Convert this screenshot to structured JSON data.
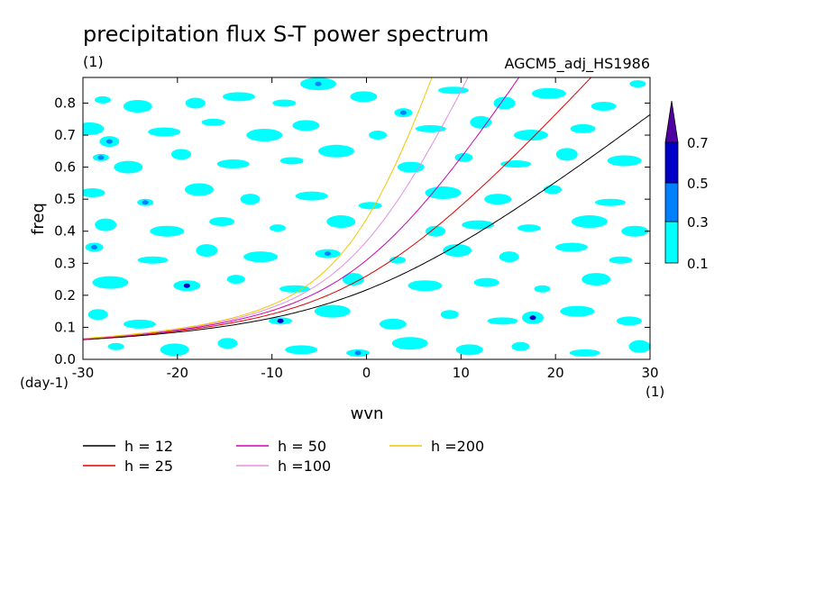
{
  "chart_data": {
    "type": "heatmap",
    "title": "precipitation flux S-T power spectrum",
    "unit_label": "(1)",
    "source_label": "AGCM5_adj_HS1986",
    "xlabel": "wvn",
    "ylabel": "freq",
    "x_unit": "(1)",
    "y_unit": "(day-1)",
    "xlim": [
      -30,
      30
    ],
    "ylim": [
      0,
      0.88
    ],
    "xticks": [
      "-30",
      "-20",
      "-10",
      "0",
      "10",
      "20",
      "30"
    ],
    "yticks": [
      "0.0",
      "0.1",
      "0.2",
      "0.3",
      "0.4",
      "0.5",
      "0.6",
      "0.7",
      "0.8"
    ],
    "colorbar": {
      "levels": [
        "0.1",
        "0.3",
        "0.5",
        "0.7"
      ],
      "colors": [
        "#00ffff",
        "#0080ff",
        "#0000c8",
        "#5000a0"
      ]
    },
    "noise_blobs": [
      {
        "x": -27.9,
        "y": 0.81,
        "v": 0.1
      },
      {
        "x": -24.2,
        "y": 0.79,
        "v": 0.1
      },
      {
        "x": -18.1,
        "y": 0.8,
        "v": 0.1
      },
      {
        "x": -13.5,
        "y": 0.82,
        "v": 0.1
      },
      {
        "x": -8.7,
        "y": 0.8,
        "v": 0.1
      },
      {
        "x": -5.1,
        "y": 0.86,
        "v": 0.3
      },
      {
        "x": -0.3,
        "y": 0.82,
        "v": 0.1
      },
      {
        "x": 3.9,
        "y": 0.77,
        "v": 0.3
      },
      {
        "x": 9.2,
        "y": 0.84,
        "v": 0.1
      },
      {
        "x": 14.6,
        "y": 0.8,
        "v": 0.1
      },
      {
        "x": 19.3,
        "y": 0.83,
        "v": 0.1
      },
      {
        "x": 25.1,
        "y": 0.79,
        "v": 0.1
      },
      {
        "x": 28.7,
        "y": 0.86,
        "v": 0.1
      },
      {
        "x": -29.3,
        "y": 0.72,
        "v": 0.1
      },
      {
        "x": -27.2,
        "y": 0.68,
        "v": 0.3
      },
      {
        "x": -21.4,
        "y": 0.71,
        "v": 0.1
      },
      {
        "x": -16.2,
        "y": 0.74,
        "v": 0.1
      },
      {
        "x": -10.8,
        "y": 0.7,
        "v": 0.1
      },
      {
        "x": -6.4,
        "y": 0.73,
        "v": 0.1
      },
      {
        "x": 1.2,
        "y": 0.7,
        "v": 0.1
      },
      {
        "x": 6.8,
        "y": 0.72,
        "v": 0.1
      },
      {
        "x": 12.1,
        "y": 0.74,
        "v": 0.1
      },
      {
        "x": 17.4,
        "y": 0.7,
        "v": 0.1
      },
      {
        "x": 22.9,
        "y": 0.72,
        "v": 0.1
      },
      {
        "x": -28.1,
        "y": 0.63,
        "v": 0.3
      },
      {
        "x": -25.2,
        "y": 0.6,
        "v": 0.1
      },
      {
        "x": -19.6,
        "y": 0.64,
        "v": 0.1
      },
      {
        "x": -14.1,
        "y": 0.61,
        "v": 0.1
      },
      {
        "x": -7.9,
        "y": 0.62,
        "v": 0.1
      },
      {
        "x": -3.2,
        "y": 0.65,
        "v": 0.1
      },
      {
        "x": 4.7,
        "y": 0.6,
        "v": 0.1
      },
      {
        "x": 10.3,
        "y": 0.63,
        "v": 0.1
      },
      {
        "x": 15.8,
        "y": 0.61,
        "v": 0.1
      },
      {
        "x": 21.2,
        "y": 0.64,
        "v": 0.1
      },
      {
        "x": 27.3,
        "y": 0.62,
        "v": 0.1
      },
      {
        "x": -29.0,
        "y": 0.52,
        "v": 0.1
      },
      {
        "x": -23.4,
        "y": 0.49,
        "v": 0.3
      },
      {
        "x": -17.7,
        "y": 0.53,
        "v": 0.1
      },
      {
        "x": -12.3,
        "y": 0.5,
        "v": 0.1
      },
      {
        "x": -5.8,
        "y": 0.51,
        "v": 0.1
      },
      {
        "x": 0.4,
        "y": 0.48,
        "v": 0.1
      },
      {
        "x": 8.1,
        "y": 0.52,
        "v": 0.1
      },
      {
        "x": 13.9,
        "y": 0.5,
        "v": 0.1
      },
      {
        "x": 19.7,
        "y": 0.53,
        "v": 0.1
      },
      {
        "x": 25.8,
        "y": 0.49,
        "v": 0.1
      },
      {
        "x": -27.6,
        "y": 0.42,
        "v": 0.1
      },
      {
        "x": -21.1,
        "y": 0.4,
        "v": 0.1
      },
      {
        "x": -15.3,
        "y": 0.43,
        "v": 0.1
      },
      {
        "x": -9.4,
        "y": 0.41,
        "v": 0.1
      },
      {
        "x": -2.7,
        "y": 0.43,
        "v": 0.1
      },
      {
        "x": 7.3,
        "y": 0.4,
        "v": 0.1
      },
      {
        "x": 11.8,
        "y": 0.42,
        "v": 0.1
      },
      {
        "x": 17.2,
        "y": 0.41,
        "v": 0.1
      },
      {
        "x": 23.6,
        "y": 0.43,
        "v": 0.1
      },
      {
        "x": 28.4,
        "y": 0.4,
        "v": 0.1
      },
      {
        "x": -28.8,
        "y": 0.35,
        "v": 0.3
      },
      {
        "x": -22.6,
        "y": 0.31,
        "v": 0.1
      },
      {
        "x": -16.9,
        "y": 0.34,
        "v": 0.1
      },
      {
        "x": -11.2,
        "y": 0.32,
        "v": 0.1
      },
      {
        "x": -4.1,
        "y": 0.33,
        "v": 0.3
      },
      {
        "x": 3.3,
        "y": 0.31,
        "v": 0.1
      },
      {
        "x": 9.6,
        "y": 0.34,
        "v": 0.1
      },
      {
        "x": 15.1,
        "y": 0.32,
        "v": 0.1
      },
      {
        "x": 21.7,
        "y": 0.35,
        "v": 0.1
      },
      {
        "x": 26.9,
        "y": 0.31,
        "v": 0.1
      },
      {
        "x": -27.1,
        "y": 0.24,
        "v": 0.1
      },
      {
        "x": -19.0,
        "y": 0.23,
        "v": 0.5
      },
      {
        "x": -13.8,
        "y": 0.25,
        "v": 0.1
      },
      {
        "x": -7.6,
        "y": 0.22,
        "v": 0.1
      },
      {
        "x": -1.4,
        "y": 0.25,
        "v": 0.1
      },
      {
        "x": 6.2,
        "y": 0.23,
        "v": 0.1
      },
      {
        "x": 12.7,
        "y": 0.24,
        "v": 0.1
      },
      {
        "x": 18.6,
        "y": 0.22,
        "v": 0.1
      },
      {
        "x": 24.3,
        "y": 0.25,
        "v": 0.1
      },
      {
        "x": -28.4,
        "y": 0.14,
        "v": 0.1
      },
      {
        "x": -24.0,
        "y": 0.11,
        "v": 0.1
      },
      {
        "x": -9.1,
        "y": 0.12,
        "v": 0.5
      },
      {
        "x": -3.6,
        "y": 0.15,
        "v": 0.1
      },
      {
        "x": 2.8,
        "y": 0.11,
        "v": 0.1
      },
      {
        "x": 8.8,
        "y": 0.14,
        "v": 0.1
      },
      {
        "x": 14.4,
        "y": 0.12,
        "v": 0.1
      },
      {
        "x": 17.6,
        "y": 0.13,
        "v": 0.5
      },
      {
        "x": 22.3,
        "y": 0.15,
        "v": 0.1
      },
      {
        "x": 27.8,
        "y": 0.12,
        "v": 0.1
      },
      {
        "x": -26.5,
        "y": 0.04,
        "v": 0.1
      },
      {
        "x": -20.3,
        "y": 0.03,
        "v": 0.1
      },
      {
        "x": -14.7,
        "y": 0.05,
        "v": 0.1
      },
      {
        "x": -6.9,
        "y": 0.03,
        "v": 0.1
      },
      {
        "x": -0.9,
        "y": 0.02,
        "v": 0.3
      },
      {
        "x": 4.6,
        "y": 0.05,
        "v": 0.1
      },
      {
        "x": 10.9,
        "y": 0.03,
        "v": 0.1
      },
      {
        "x": 16.3,
        "y": 0.04,
        "v": 0.1
      },
      {
        "x": 23.1,
        "y": 0.02,
        "v": 0.1
      },
      {
        "x": 28.9,
        "y": 0.04,
        "v": 0.1
      }
    ],
    "series": [
      {
        "name": "h = 12",
        "h": 12,
        "color": "#000000"
      },
      {
        "name": "h = 25",
        "h": 25,
        "color": "#e00000"
      },
      {
        "name": "h = 50",
        "h": 50,
        "color": "#d000b0"
      },
      {
        "name": "h =100",
        "h": 100,
        "color": "#e090e0"
      },
      {
        "name": "h =200",
        "h": 200,
        "color": "#f0c800"
      }
    ]
  }
}
